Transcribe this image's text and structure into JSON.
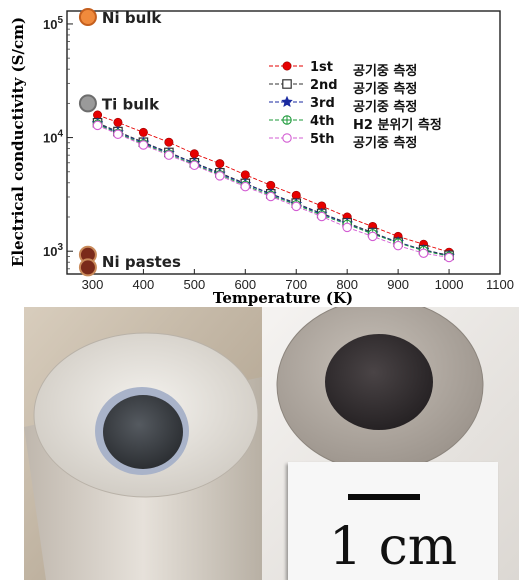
{
  "chart_data": {
    "type": "line",
    "xlabel": "Temperature (K)",
    "ylabel": "Electrical conductivity (S/cm)",
    "x_ticks": [
      "300",
      "400",
      "500",
      "600",
      "700",
      "800",
      "900",
      "1000",
      "1100"
    ],
    "y_ticks": [
      "10^3",
      "10^4",
      "10^5"
    ],
    "xlim": [
      250,
      1100
    ],
    "ylim": [
      630,
      130000
    ],
    "y_scale": "log",
    "legend_position": "right",
    "x": [
      310,
      350,
      400,
      450,
      500,
      550,
      600,
      650,
      700,
      750,
      800,
      850,
      900,
      950,
      1000
    ],
    "series": [
      {
        "name": "1st",
        "note": "공기중 측정",
        "marker": "filled-circle",
        "color": "#e60000",
        "values": [
          15800,
          13600,
          11100,
          9100,
          7200,
          5900,
          4700,
          3800,
          3100,
          2500,
          2000,
          1650,
          1350,
          1150,
          980
        ]
      },
      {
        "name": "2nd",
        "note": "공기중 측정",
        "marker": "open-square",
        "color": "#333333",
        "values": [
          13500,
          11300,
          9100,
          7400,
          6000,
          4900,
          3950,
          3200,
          2650,
          2150,
          1780,
          1460,
          1200,
          1030,
          920
        ]
      },
      {
        "name": "3rd",
        "note": "공기중 측정",
        "marker": "filled-star",
        "color": "#1a2aa0",
        "values": [
          13300,
          11100,
          9000,
          7300,
          5950,
          4800,
          3900,
          3180,
          2600,
          2130,
          1750,
          1430,
          1200,
          1020,
          910
        ]
      },
      {
        "name": "4th",
        "note": "H2 분위기 측정",
        "marker": "crossed-circle",
        "color": "#1c9a3a",
        "values": [
          13100,
          10900,
          8800,
          7150,
          5800,
          4700,
          3800,
          3100,
          2560,
          2080,
          1720,
          1420,
          1180,
          1010,
          900
        ]
      },
      {
        "name": "5th",
        "note": "공기중 측정",
        "marker": "open-circle",
        "color": "#d35dd3",
        "values": [
          12800,
          10700,
          8600,
          7000,
          5700,
          4600,
          3700,
          3030,
          2480,
          2020,
          1620,
          1350,
          1120,
          960,
          880
        ]
      }
    ],
    "reference_points": [
      {
        "label": "Ni bulk",
        "x": 295,
        "value": 115000,
        "color": "#f08a3c"
      },
      {
        "label": "Ti bulk",
        "x": 295,
        "value": 20000,
        "color": "#9a9a9a"
      },
      {
        "label": "Ni pastes",
        "x": 295,
        "values": [
          930,
          720
        ],
        "color": "#7a2a1a"
      }
    ]
  },
  "scale_label": "1 cm"
}
